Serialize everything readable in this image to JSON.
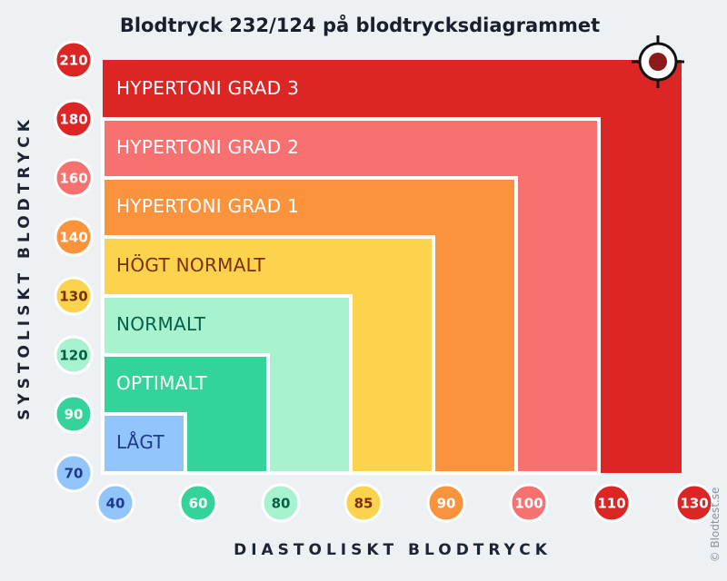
{
  "chart_data": {
    "type": "heatmap",
    "title": "Blodtryck 232/124 på blodtrycksdiagrammet",
    "xlabel": "DIASTOLISKT BLODTRYCK",
    "ylabel": "SYSTOLISKT BLODTRYCK",
    "x_ticks": [
      "40",
      "60",
      "80",
      "85",
      "90",
      "100",
      "110",
      "130"
    ],
    "y_ticks": [
      "70",
      "90",
      "120",
      "130",
      "140",
      "160",
      "180",
      "210"
    ],
    "zones": [
      {
        "label": "HYPERTONI GRAD 3",
        "diastolic_max": 130,
        "systolic_max": 210,
        "color": "#dc2626",
        "text_color": "#ffffff"
      },
      {
        "label": "HYPERTONI GRAD 2",
        "diastolic_max": 110,
        "systolic_max": 180,
        "color": "#f87171",
        "text_color": "#ffffff"
      },
      {
        "label": "HYPERTONI GRAD 1",
        "diastolic_max": 100,
        "systolic_max": 160,
        "color": "#fb923c",
        "text_color": "#ffffff"
      },
      {
        "label": "HÖGT NORMALT",
        "diastolic_max": 90,
        "systolic_max": 140,
        "color": "#fcd34d",
        "text_color": "#7a2e05"
      },
      {
        "label": "NORMALT",
        "diastolic_max": 85,
        "systolic_max": 130,
        "color": "#a7f3d0",
        "text_color": "#065f46"
      },
      {
        "label": "OPTIMALT",
        "diastolic_max": 80,
        "systolic_max": 120,
        "color": "#34d399",
        "text_color": "#ffffff"
      },
      {
        "label": "LÅGT",
        "diastolic_max": 60,
        "systolic_max": 90,
        "color": "#93c5fd",
        "text_color": "#1e3a8a"
      }
    ],
    "tick_colors": {
      "40": {
        "fill": "#93c5fd",
        "text": "#1e3a8a"
      },
      "60": {
        "fill": "#34d399",
        "text": "#ffffff"
      },
      "70": {
        "fill": "#93c5fd",
        "text": "#1e3a8a"
      },
      "80": {
        "fill": "#a7f3d0",
        "text": "#065f46"
      },
      "85": {
        "fill": "#fcd34d",
        "text": "#7a2e05"
      },
      "90": {
        "fill": "#34d399",
        "text": "#ffffff"
      },
      "120": {
        "fill": "#a7f3d0",
        "text": "#065f46"
      },
      "130": {
        "fill": "#fcd34d",
        "text": "#7a2e05"
      },
      "140": {
        "fill": "#fb923c",
        "text": "#ffffff"
      },
      "160": {
        "fill": "#f87171",
        "text": "#ffffff"
      },
      "180": {
        "fill": "#dc2626",
        "text": "#ffffff"
      },
      "210": {
        "fill": "#dc2626",
        "text": "#ffffff"
      },
      "100": {
        "fill": "#f87171",
        "text": "#ffffff"
      },
      "110": {
        "fill": "#dc2626",
        "text": "#ffffff"
      }
    },
    "x_tick_colors": {
      "90": {
        "fill": "#fb923c",
        "text": "#ffffff"
      },
      "130": {
        "fill": "#dc2626",
        "text": "#ffffff"
      }
    },
    "marker": {
      "systolic": 232,
      "diastolic": 124,
      "icon": "target-icon",
      "color": "#8b1a1a"
    }
  },
  "credit": "© Blodtest.se"
}
